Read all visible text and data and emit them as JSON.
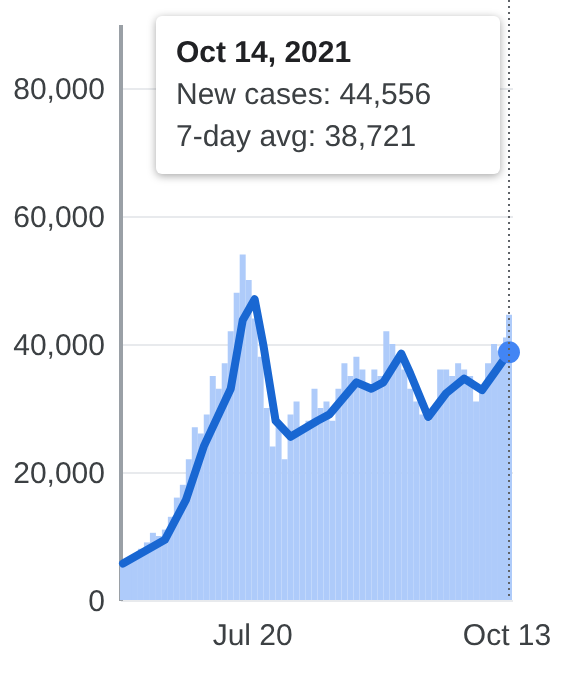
{
  "chart_data": {
    "type": "bar",
    "annotations": [
      "Oct 14, 2021",
      "New cases: 44,556",
      "7-day avg: 38,721"
    ],
    "xlim": [
      "2021-06-06",
      "2021-10-15"
    ],
    "xticks": [
      {
        "value": "2021-07-20",
        "label": "Jul 20"
      },
      {
        "value": "2021-10-13",
        "label": "Oct 13"
      }
    ],
    "ylim": [
      0,
      90000
    ],
    "yticks": [
      0,
      {
        "value": 20000,
        "label": "20,000"
      },
      {
        "value": 40000,
        "label": "40,000"
      },
      {
        "value": 60000,
        "label": "60,000"
      },
      {
        "value": 80000,
        "label": "80,000"
      }
    ],
    "grid": "y",
    "ref_lines": [
      {
        "axis": "x",
        "value": "2021-10-14",
        "color": "#5f6368",
        "line_style": "dotted"
      }
    ],
    "series": [
      {
        "color": "#aecbfa",
        "x": [
          "2021-06-07",
          "2021-06-09",
          "2021-06-11",
          "2021-06-13",
          "2021-06-15",
          "2021-06-17",
          "2021-06-19",
          "2021-06-21",
          "2021-06-23",
          "2021-06-25",
          "2021-06-27",
          "2021-06-29",
          "2021-07-01",
          "2021-07-03",
          "2021-07-05",
          "2021-07-07",
          "2021-07-09",
          "2021-07-11",
          "2021-07-13",
          "2021-07-15",
          "2021-07-17",
          "2021-07-19",
          "2021-07-21",
          "2021-07-23",
          "2021-07-25",
          "2021-07-27",
          "2021-07-29",
          "2021-07-31",
          "2021-08-02",
          "2021-08-04",
          "2021-08-06",
          "2021-08-08",
          "2021-08-10",
          "2021-08-12",
          "2021-08-14",
          "2021-08-16",
          "2021-08-18",
          "2021-08-20",
          "2021-08-22",
          "2021-08-24",
          "2021-08-26",
          "2021-08-28",
          "2021-08-30",
          "2021-09-01",
          "2021-09-03",
          "2021-09-05",
          "2021-09-07",
          "2021-09-09",
          "2021-09-11",
          "2021-09-13",
          "2021-09-15",
          "2021-09-17",
          "2021-09-19",
          "2021-09-21",
          "2021-09-23",
          "2021-09-25",
          "2021-09-27",
          "2021-09-29",
          "2021-10-01",
          "2021-10-03",
          "2021-10-05",
          "2021-10-07",
          "2021-10-09",
          "2021-10-11",
          "2021-10-13",
          "2021-10-14"
        ],
        "values": [
          5500,
          6500,
          7000,
          8000,
          9000,
          10500,
          10000,
          11000,
          13000,
          16000,
          18000,
          22000,
          27000,
          26000,
          29000,
          35000,
          33000,
          37000,
          42000,
          48000,
          54000,
          50000,
          44000,
          38000,
          30000,
          24000,
          27000,
          22000,
          29000,
          31000,
          27000,
          28000,
          33000,
          30000,
          31000,
          28000,
          33000,
          37000,
          35000,
          38000,
          36000,
          33000,
          36000,
          35000,
          42000,
          40000,
          38000,
          36000,
          33000,
          31000,
          29000,
          28000,
          30000,
          36000,
          36000,
          35000,
          37000,
          36000,
          35000,
          31000,
          33000,
          37000,
          40000,
          39000,
          41000,
          44556
        ]
      },
      {
        "type": "line",
        "color": "#1967d2",
        "x": [
          "2021-06-07",
          "2021-06-21",
          "2021-06-28",
          "2021-07-04",
          "2021-07-13",
          "2021-07-17",
          "2021-07-21",
          "2021-07-24",
          "2021-07-28",
          "2021-08-02",
          "2021-08-11",
          "2021-08-15",
          "2021-08-24",
          "2021-08-29",
          "2021-09-02",
          "2021-09-08",
          "2021-09-11",
          "2021-09-17",
          "2021-09-23",
          "2021-09-29",
          "2021-10-05",
          "2021-10-09",
          "2021-10-14"
        ],
        "values": [
          5700,
          9400,
          15600,
          24000,
          33000,
          43700,
          47000,
          39600,
          28000,
          25500,
          28000,
          29000,
          34000,
          33000,
          34000,
          38500,
          35400,
          28600,
          32300,
          34600,
          32800,
          35400,
          38721
        ]
      },
      {
        "type": "scatter",
        "color": "#4285f4",
        "x": [
          "2021-10-14"
        ],
        "values": [
          38721
        ]
      }
    ]
  }
}
